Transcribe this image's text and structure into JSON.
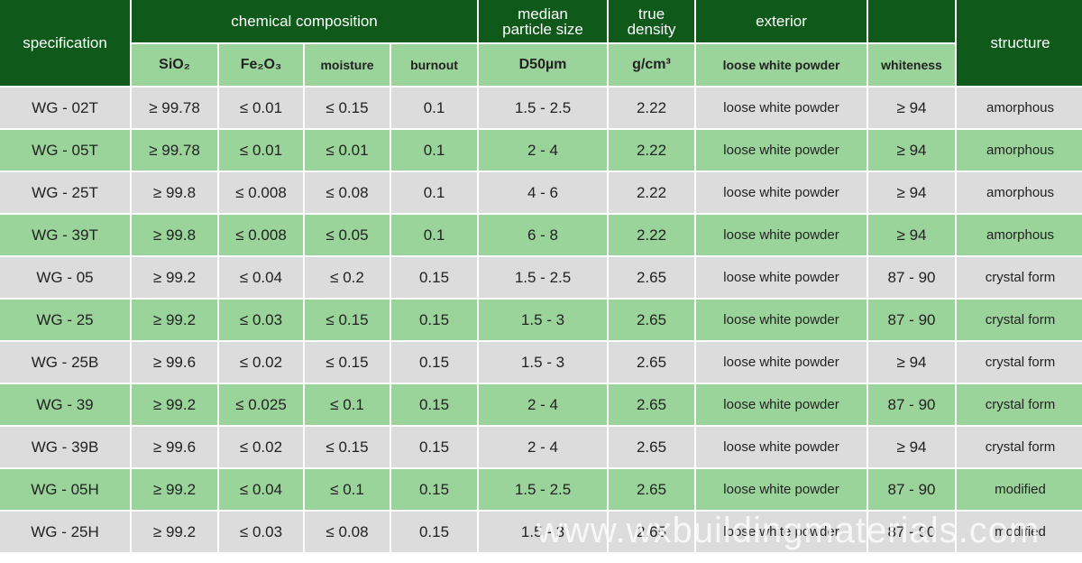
{
  "header": {
    "specification": "specification",
    "chemical_composition": "chemical composition",
    "median_particle_size": "median\nparticle size",
    "true_density": "true\ndensity",
    "exterior": "exterior",
    "structure": "structure"
  },
  "subheader": {
    "sio2": "SiO₂",
    "fe2o3": "Fe₂O₃",
    "moisture": "moisture",
    "burnout": "burnout",
    "d50": "D50µm",
    "density_unit": "g/cm³",
    "exterior": "loose white powder",
    "whiteness": "whiteness"
  },
  "rows": [
    {
      "spec": "WG - 02T",
      "sio2": "≥ 99.78",
      "fe2o3": "≤ 0.01",
      "moisture": "≤ 0.15",
      "burnout": "0.1",
      "d50": "1.5 - 2.5",
      "density": "2.22",
      "exterior": "loose white powder",
      "whiteness": "≥ 94",
      "structure": "amorphous"
    },
    {
      "spec": "WG - 05T",
      "sio2": "≥ 99.78",
      "fe2o3": "≤ 0.01",
      "moisture": "≤ 0.01",
      "burnout": "0.1",
      "d50": "2 - 4",
      "density": "2.22",
      "exterior": "loose white powder",
      "whiteness": "≥ 94",
      "structure": "amorphous"
    },
    {
      "spec": "WG - 25T",
      "sio2": "≥ 99.8",
      "fe2o3": "≤ 0.008",
      "moisture": "≤ 0.08",
      "burnout": "0.1",
      "d50": "4 - 6",
      "density": "2.22",
      "exterior": "loose white powder",
      "whiteness": "≥ 94",
      "structure": "amorphous"
    },
    {
      "spec": "WG - 39T",
      "sio2": "≥ 99.8",
      "fe2o3": "≤ 0.008",
      "moisture": "≤ 0.05",
      "burnout": "0.1",
      "d50": "6 - 8",
      "density": "2.22",
      "exterior": "loose white powder",
      "whiteness": "≥ 94",
      "structure": "amorphous"
    },
    {
      "spec": "WG - 05",
      "sio2": "≥ 99.2",
      "fe2o3": "≤ 0.04",
      "moisture": "≤ 0.2",
      "burnout": "0.15",
      "d50": "1.5 - 2.5",
      "density": "2.65",
      "exterior": "loose white powder",
      "whiteness": "87 - 90",
      "structure": "crystal form"
    },
    {
      "spec": "WG - 25",
      "sio2": "≥ 99.2",
      "fe2o3": "≤ 0.03",
      "moisture": "≤ 0.15",
      "burnout": "0.15",
      "d50": "1.5 - 3",
      "density": "2.65",
      "exterior": "loose white powder",
      "whiteness": "87 - 90",
      "structure": "crystal form"
    },
    {
      "spec": "WG - 25B",
      "sio2": "≥ 99.6",
      "fe2o3": "≤ 0.02",
      "moisture": "≤ 0.15",
      "burnout": "0.15",
      "d50": "1.5 - 3",
      "density": "2.65",
      "exterior": "loose white powder",
      "whiteness": "≥ 94",
      "structure": "crystal form"
    },
    {
      "spec": "WG - 39",
      "sio2": "≥ 99.2",
      "fe2o3": "≤ 0.025",
      "moisture": "≤ 0.1",
      "burnout": "0.15",
      "d50": "2 - 4",
      "density": "2.65",
      "exterior": "loose white powder",
      "whiteness": "87 - 90",
      "structure": "crystal form"
    },
    {
      "spec": "WG - 39B",
      "sio2": "≥ 99.6",
      "fe2o3": "≤ 0.02",
      "moisture": "≤ 0.15",
      "burnout": "0.15",
      "d50": "2 - 4",
      "density": "2.65",
      "exterior": "loose white powder",
      "whiteness": "≥ 94",
      "structure": "crystal form"
    },
    {
      "spec": "WG - 05H",
      "sio2": "≥ 99.2",
      "fe2o3": "≤ 0.04",
      "moisture": "≤ 0.1",
      "burnout": "0.15",
      "d50": "1.5 - 2.5",
      "density": "2.65",
      "exterior": "loose white powder",
      "whiteness": "87 - 90",
      "structure": "modified"
    },
    {
      "spec": "WG - 25H",
      "sio2": "≥ 99.2",
      "fe2o3": "≤ 0.03",
      "moisture": "≤ 0.08",
      "burnout": "0.15",
      "d50": "1.5 - 3",
      "density": "2.65",
      "exterior": "loose white powder",
      "whiteness": "87 - 90",
      "structure": "modified"
    }
  ],
  "watermark": "www.wxbuildingmaterials.com",
  "colors": {
    "header_dark_green": "#0f5a1a",
    "light_green": "#9bd49a",
    "gray": "#dcdcdc"
  }
}
